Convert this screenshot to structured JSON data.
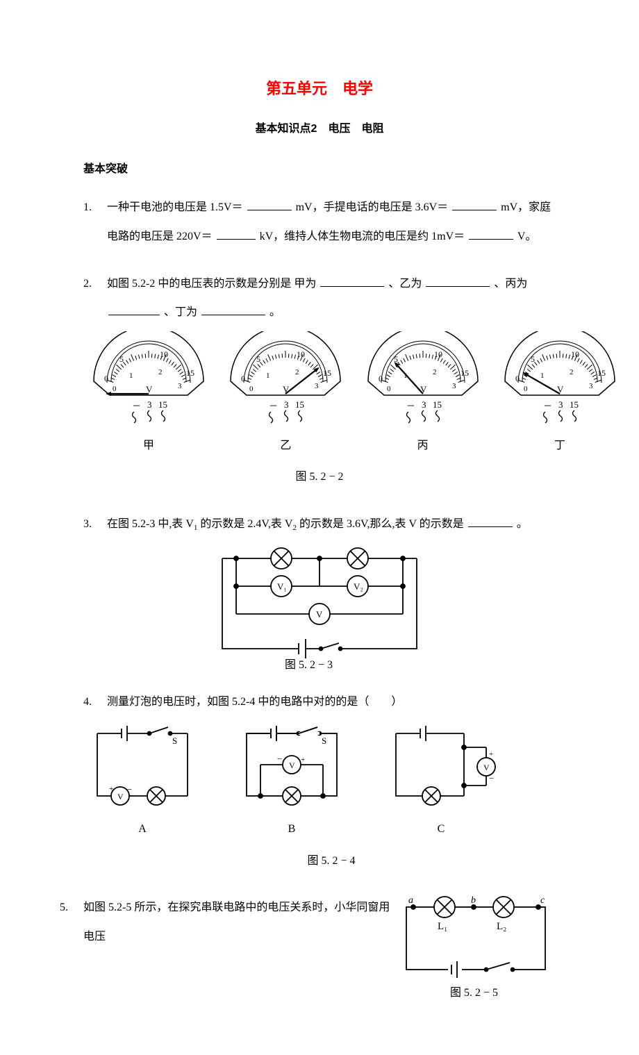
{
  "colors": {
    "title": "#ff0000",
    "text": "#000000",
    "bg": "#ffffff",
    "stroke": "#000000"
  },
  "title": "第五单元　电学",
  "subtitle": "基本知识点2　电压　电阻",
  "section": "基本突破",
  "q1": {
    "num": "1.",
    "t1": "一种干电池的电压是 1.5V＝",
    "u1": "mV，手提电话的电压是 3.6V＝",
    "u2": "mV，家庭",
    "line2a": "电路的电压是 220V＝",
    "u3": "kV，维持人体生物电流的电压是约 1mV＝",
    "u4": "V。"
  },
  "q2": {
    "num": "2.",
    "t1": "如图 5.2-2 中的电压表的示数是分别是 甲为",
    "t2": "、乙为",
    "t3": "、丙为",
    "t4": "、丁为",
    "t5": "。",
    "meters": {
      "labels": [
        "甲",
        "乙",
        "丙",
        "丁"
      ],
      "needle_angles": [
        -90,
        52,
        -42,
        -60
      ],
      "top_scale": [
        "0",
        "5",
        "10",
        "15"
      ],
      "bottom_scale": [
        "0",
        "1",
        "2",
        "3"
      ],
      "unit": "V",
      "terminals": [
        "－",
        "3",
        "15"
      ]
    },
    "caption": "图 5. 2 − 2"
  },
  "q3": {
    "num": "3.",
    "t1": "在图 5.2-3 中,表 V",
    "sub1": "1",
    "t2": " 的示数是 2.4V,表 V",
    "sub2": "2",
    "t3": " 的示数是 3.6V,那么,表 V 的示数是",
    "t4": "。",
    "caption": "图 5. 2 − 3",
    "labels": {
      "v1": "V₁",
      "v2": "V₂",
      "v": "V"
    }
  },
  "q4": {
    "num": "4.",
    "t1": "测量灯泡的电压时，如图 5.2-4 中的电路中对的的是（　　）",
    "labels": [
      "A",
      "B",
      "C"
    ],
    "caption": "图 5. 2 − 4"
  },
  "q5": {
    "num": "5.",
    "t1": "如图 5.2-5 所示，在探究串联电路中的电压关系时，小华同窗用电压",
    "labels": {
      "a": "a",
      "b": "b",
      "c": "c",
      "L1": "L₁",
      "L2": "L₂"
    },
    "caption": "图 5. 2 − 5"
  }
}
